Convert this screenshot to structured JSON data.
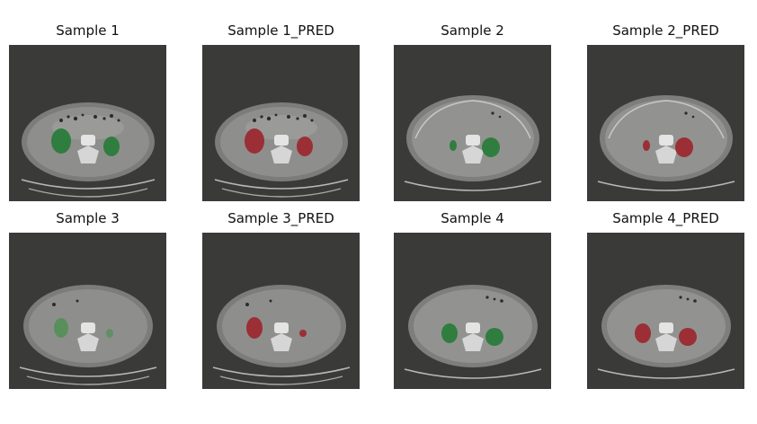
{
  "figure": {
    "panels": [
      {
        "title": "Sample 1",
        "kind": "ground-truth",
        "overlay_color": "#2f7d3f"
      },
      {
        "title": "Sample 1_PRED",
        "kind": "prediction",
        "overlay_color": "#9b2f35"
      },
      {
        "title": "Sample 2",
        "kind": "ground-truth",
        "overlay_color": "#2f7d3f"
      },
      {
        "title": "Sample 2_PRED",
        "kind": "prediction",
        "overlay_color": "#9b2f35"
      },
      {
        "title": "Sample 3",
        "kind": "ground-truth",
        "overlay_color": "#2f7d3f"
      },
      {
        "title": "Sample 3_PRED",
        "kind": "prediction",
        "overlay_color": "#9b2f35"
      },
      {
        "title": "Sample 4",
        "kind": "ground-truth",
        "overlay_color": "#2f7d3f"
      },
      {
        "title": "Sample 4_PRED",
        "kind": "prediction",
        "overlay_color": "#9b2f35"
      }
    ],
    "colors": {
      "background": "#3a3b39",
      "body": "#8e8f8c",
      "bone": "#e4e4e4",
      "ground_truth": "#2f7d3f",
      "prediction": "#9b2f35"
    }
  }
}
